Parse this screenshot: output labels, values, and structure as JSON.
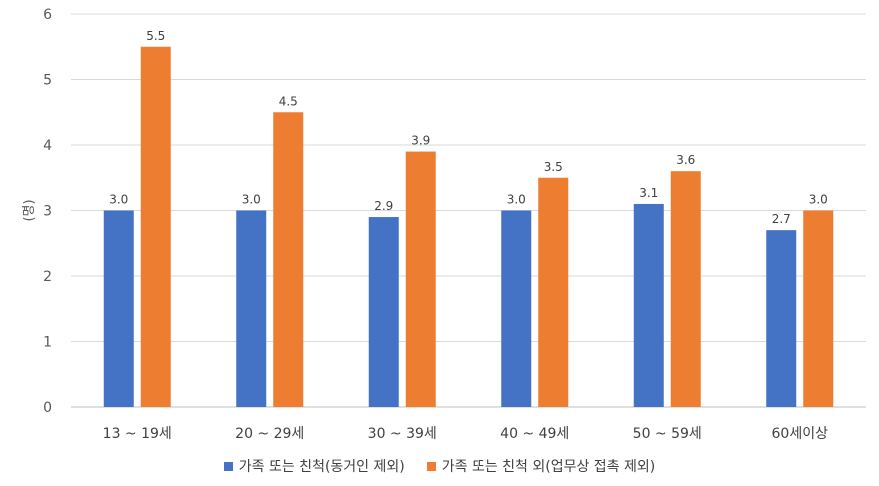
{
  "chart_data": {
    "type": "bar",
    "title": "",
    "xlabel": "",
    "ylabel": "(명)",
    "ylim": [
      0,
      6
    ],
    "yticks": [
      0,
      1,
      2,
      3,
      4,
      5,
      6
    ],
    "grid": true,
    "legend_position": "bottom",
    "categories": [
      "13 ~ 19세",
      "20 ~ 29세",
      "30 ~ 39세",
      "40 ~ 49세",
      "50 ~ 59세",
      "60세이상"
    ],
    "series": [
      {
        "name": "가족 또는 친척(동거인 제외)",
        "color": "#4472C4",
        "values": [
          3.0,
          3.0,
          2.9,
          3.0,
          3.1,
          2.7
        ],
        "labels": [
          "3.0",
          "3.0",
          "2.9",
          "3.0",
          "3.1",
          "2.7"
        ]
      },
      {
        "name": "가족 또는 친척 외(업무상 접촉 제외)",
        "color": "#ED7D31",
        "values": [
          5.5,
          4.5,
          3.9,
          3.5,
          3.6,
          3.0
        ],
        "labels": [
          "5.5",
          "4.5",
          "3.9",
          "3.5",
          "3.6",
          "3.0"
        ]
      }
    ]
  }
}
